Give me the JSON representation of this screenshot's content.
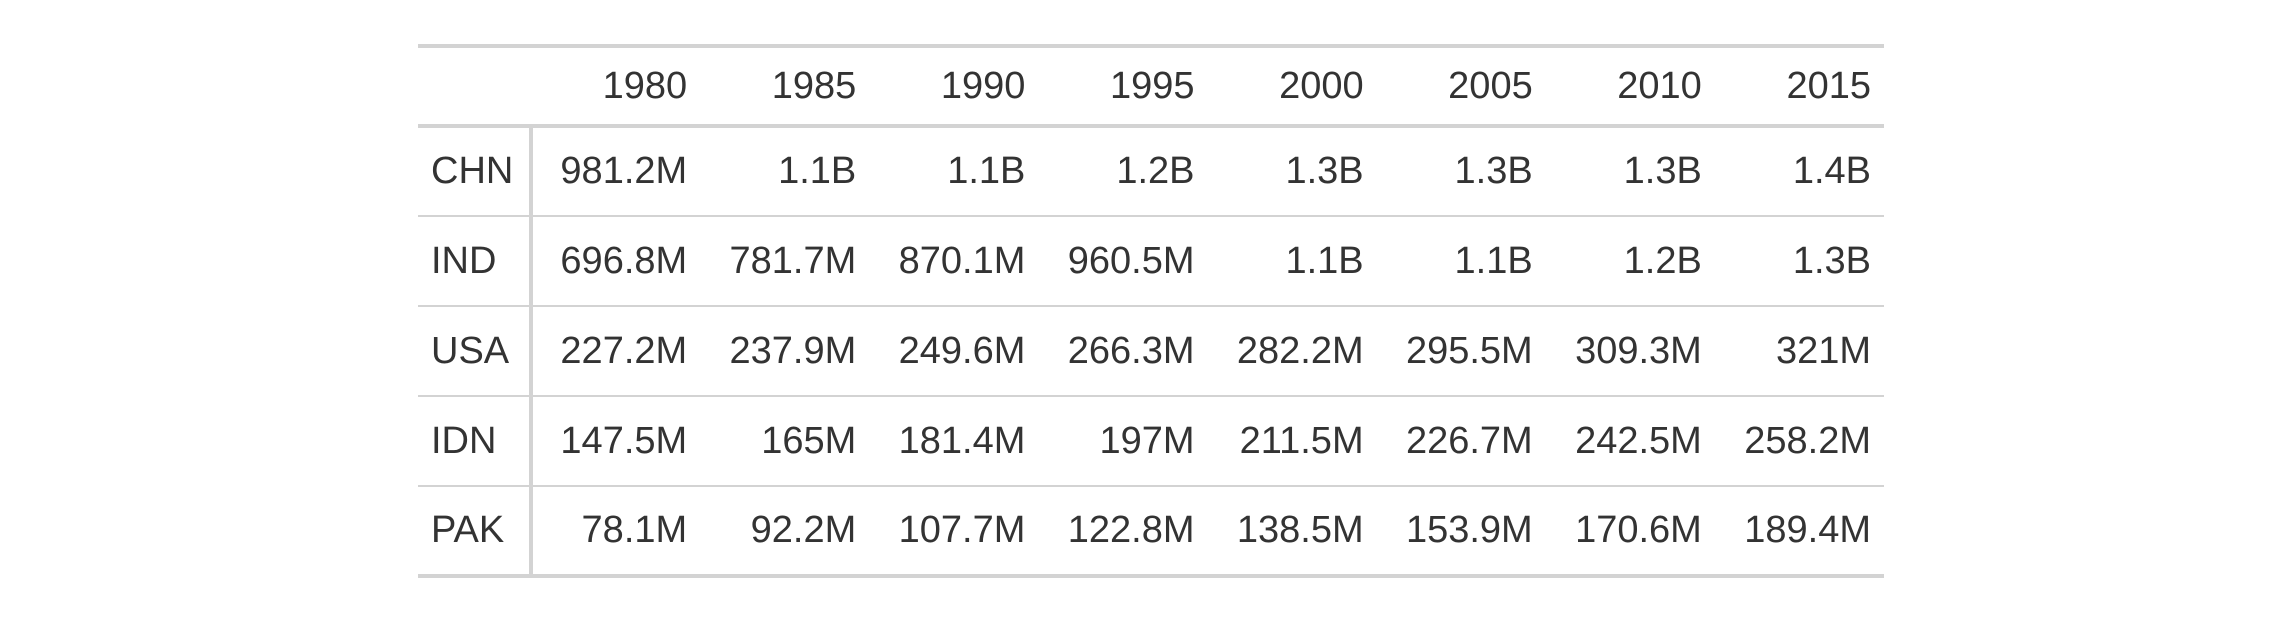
{
  "table": {
    "stub_header": "",
    "years": [
      "1980",
      "1985",
      "1990",
      "1995",
      "2000",
      "2005",
      "2010",
      "2015"
    ],
    "rows": [
      {
        "country": "CHN",
        "values": [
          "981.2M",
          "1.1B",
          "1.1B",
          "1.2B",
          "1.3B",
          "1.3B",
          "1.3B",
          "1.4B"
        ]
      },
      {
        "country": "IND",
        "values": [
          "696.8M",
          "781.7M",
          "870.1M",
          "960.5M",
          "1.1B",
          "1.1B",
          "1.2B",
          "1.3B"
        ]
      },
      {
        "country": "USA",
        "values": [
          "227.2M",
          "237.9M",
          "249.6M",
          "266.3M",
          "282.2M",
          "295.5M",
          "309.3M",
          "321M"
        ]
      },
      {
        "country": "IDN",
        "values": [
          "147.5M",
          "165M",
          "181.4M",
          "197M",
          "211.5M",
          "226.7M",
          "242.5M",
          "258.2M"
        ]
      },
      {
        "country": "PAK",
        "values": [
          "78.1M",
          "92.2M",
          "107.7M",
          "122.8M",
          "138.5M",
          "153.9M",
          "170.6M",
          "189.4M"
        ]
      }
    ]
  }
}
